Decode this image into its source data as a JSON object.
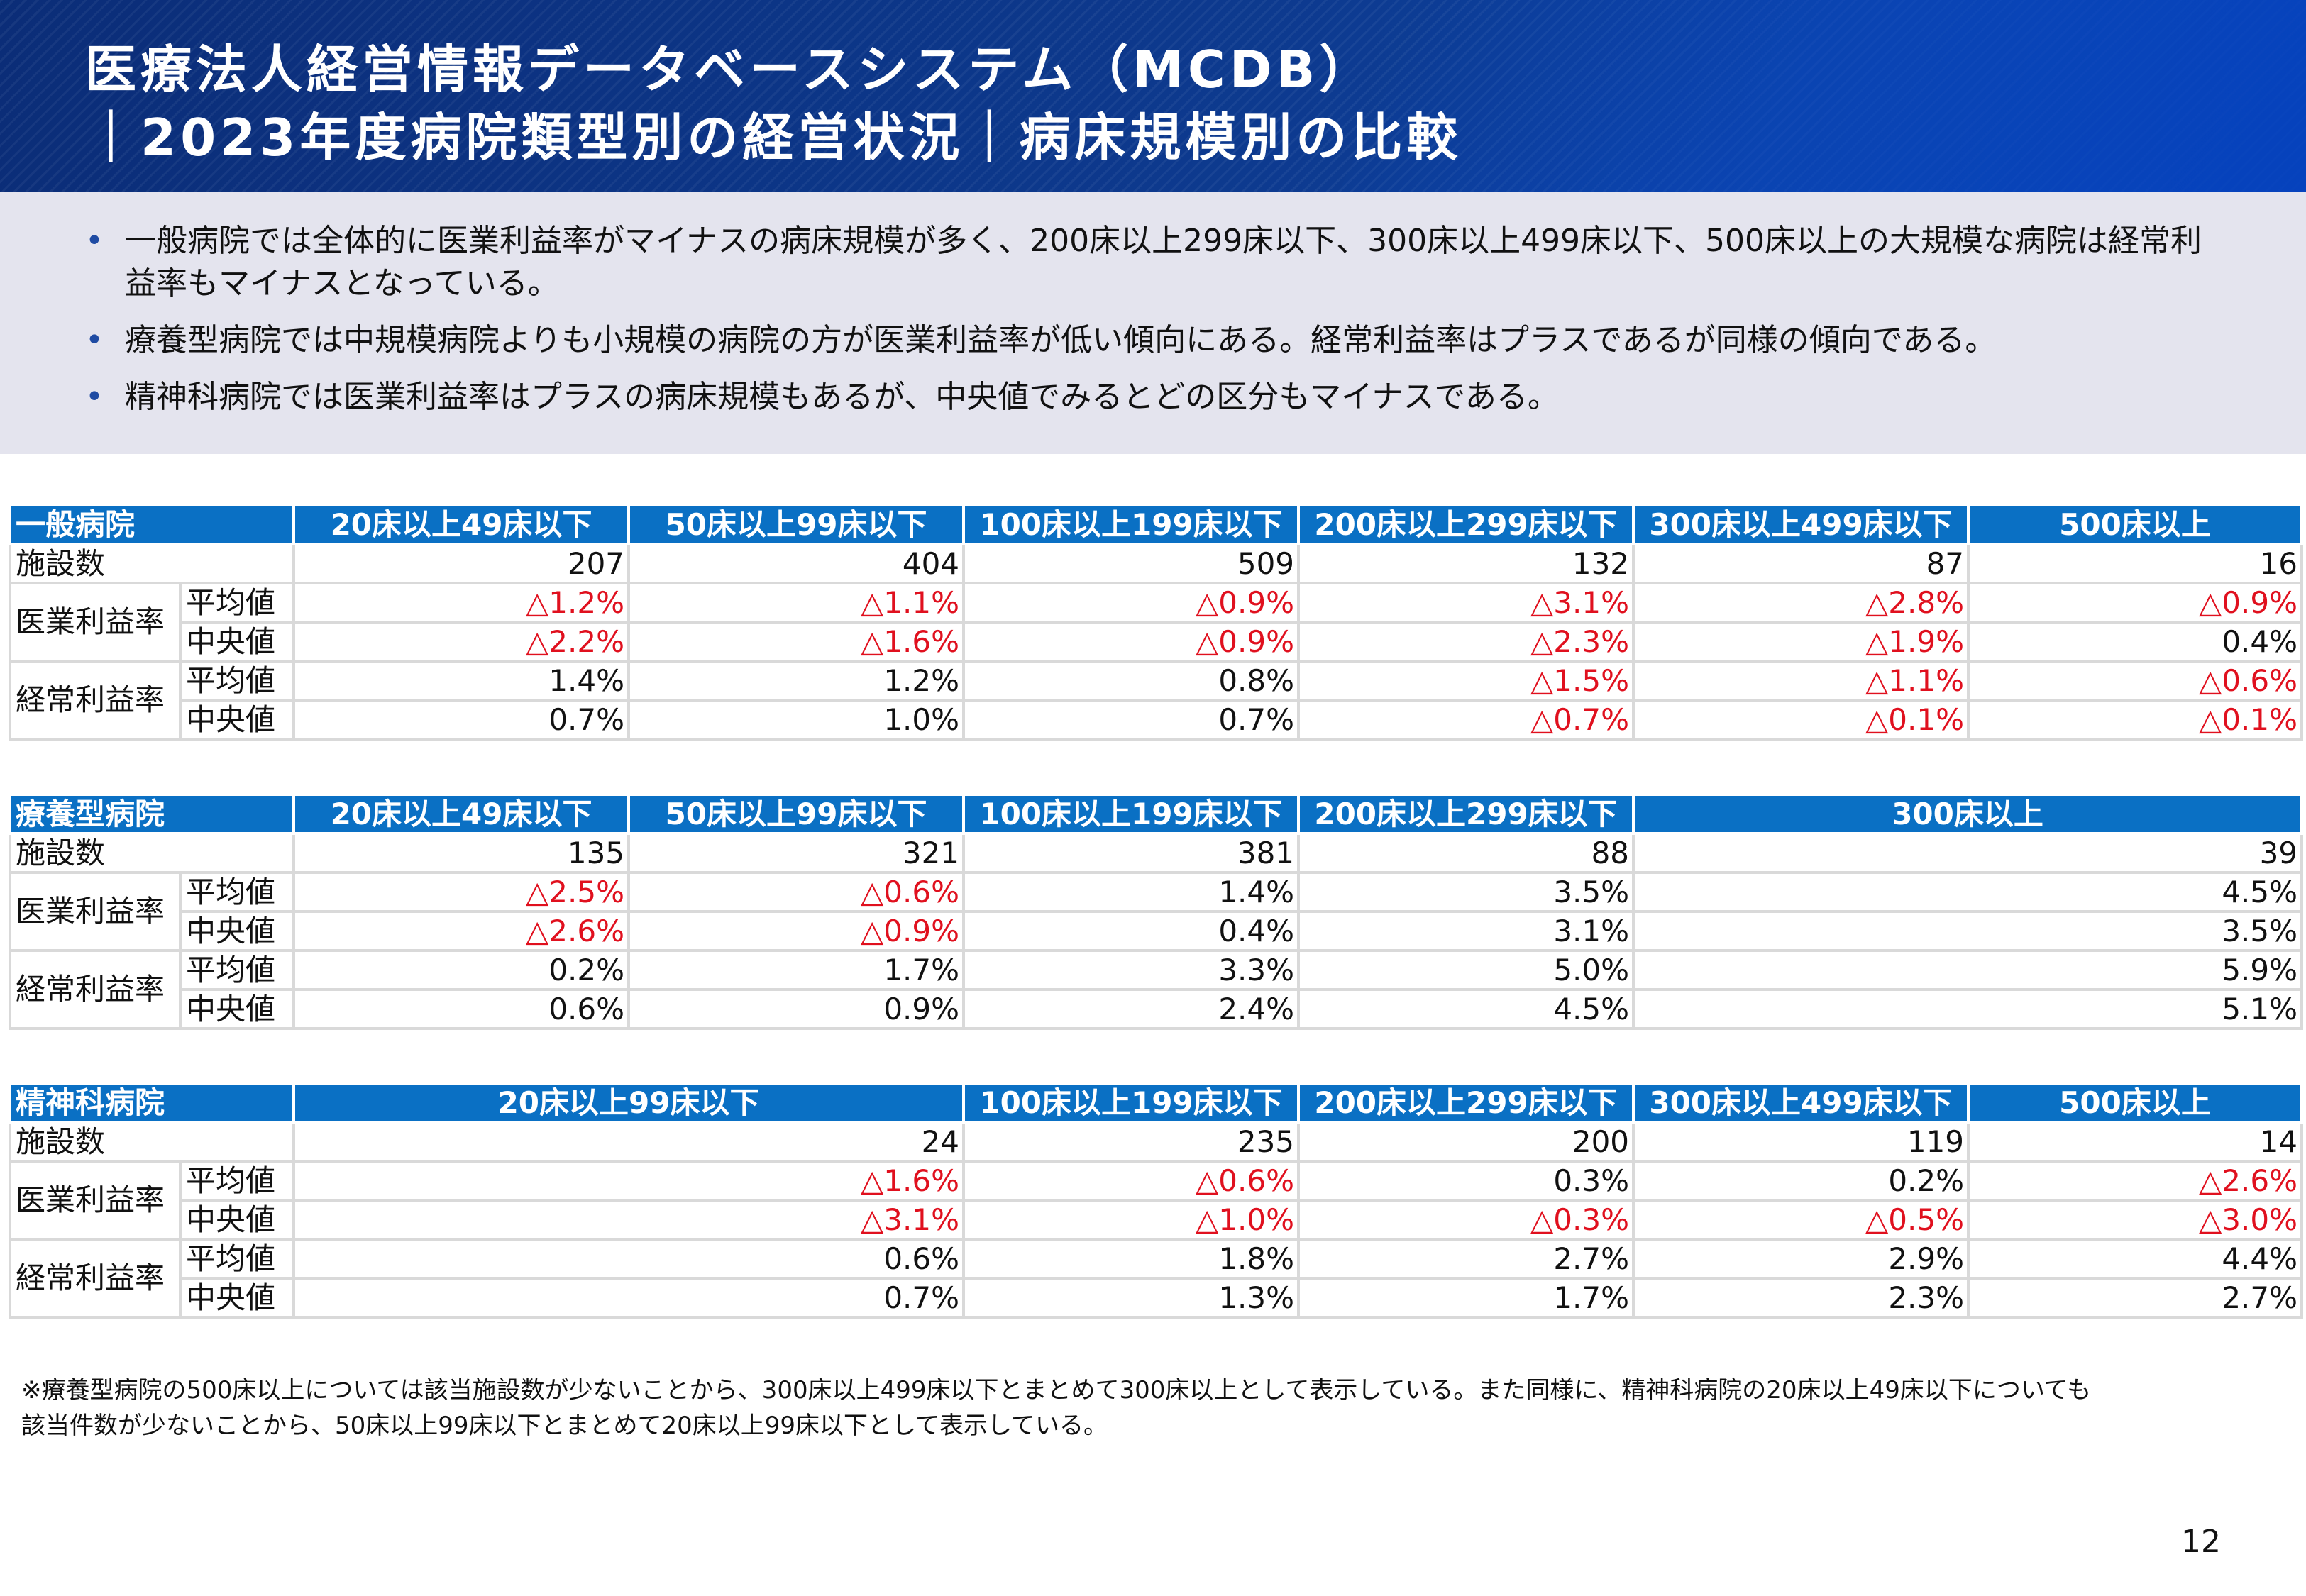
{
  "header": {
    "title_line1": "医療法人経営情報データベースシステム（MCDB）",
    "title_line2": "｜2023年度病院類型別の経営状況｜病床規模別の比較"
  },
  "summary": {
    "bullet": "•",
    "points": [
      "一般病院では全体的に医業利益率がマイナスの病床規模が多く、200床以上299床以下、300床以上499床以下、500床以上の大規模な病院は経常利益率もマイナスとなっている。",
      "療養型病院では中規模病院よりも小規模の病院の方が医業利益率が低い傾向にある。経常利益率はプラスであるが同様の傾向である。",
      "精神科病院では医業利益率はプラスの病床規模もあるが、中央値でみるとどの区分もマイナスである。"
    ]
  },
  "labels": {
    "facilities": "施設数",
    "operating_margin": "医業利益率",
    "ordinary_margin": "経常利益率",
    "mean": "平均値",
    "median": "中央値"
  },
  "tables": {
    "general": {
      "name": "一般病院",
      "columns": [
        "20床以上49床以下",
        "50床以上99床以下",
        "100床以上199床以下",
        "200床以上299床以下",
        "300床以上499床以下",
        "500床以上"
      ],
      "facilities": [
        "207",
        "404",
        "509",
        "132",
        "87",
        "16"
      ],
      "op_mean": [
        "△1.2%",
        "△1.1%",
        "△0.9%",
        "△3.1%",
        "△2.8%",
        "△0.9%"
      ],
      "op_median": [
        "△2.2%",
        "△1.6%",
        "△0.9%",
        "△2.3%",
        "△1.9%",
        "0.4%"
      ],
      "ord_mean": [
        "1.4%",
        "1.2%",
        "0.8%",
        "△1.5%",
        "△1.1%",
        "△0.6%"
      ],
      "ord_median": [
        "0.7%",
        "1.0%",
        "0.7%",
        "△0.7%",
        "△0.1%",
        "△0.1%"
      ]
    },
    "recuperative": {
      "name": "療養型病院",
      "columns": [
        "20床以上49床以下",
        "50床以上99床以下",
        "100床以上199床以下",
        "200床以上299床以下",
        "300床以上"
      ],
      "facilities": [
        "135",
        "321",
        "381",
        "88",
        "39"
      ],
      "op_mean": [
        "△2.5%",
        "△0.6%",
        "1.4%",
        "3.5%",
        "4.5%"
      ],
      "op_median": [
        "△2.6%",
        "△0.9%",
        "0.4%",
        "3.1%",
        "3.5%"
      ],
      "ord_mean": [
        "0.2%",
        "1.7%",
        "3.3%",
        "5.0%",
        "5.9%"
      ],
      "ord_median": [
        "0.6%",
        "0.9%",
        "2.4%",
        "4.5%",
        "5.1%"
      ]
    },
    "psychiatric": {
      "name": "精神科病院",
      "columns": [
        "20床以上99床以下",
        "100床以上199床以下",
        "200床以上299床以下",
        "300床以上499床以下",
        "500床以上"
      ],
      "facilities": [
        "24",
        "235",
        "200",
        "119",
        "14"
      ],
      "op_mean": [
        "△1.6%",
        "△0.6%",
        "0.3%",
        "0.2%",
        "△2.6%"
      ],
      "op_median": [
        "△3.1%",
        "△1.0%",
        "△0.3%",
        "△0.5%",
        "△3.0%"
      ],
      "ord_mean": [
        "0.6%",
        "1.8%",
        "2.7%",
        "2.9%",
        "4.4%"
      ],
      "ord_median": [
        "0.7%",
        "1.3%",
        "1.7%",
        "2.3%",
        "2.7%"
      ]
    }
  },
  "footnote": {
    "line1": "※療養型病院の500床以上については該当施設数が少ないことから、300床以上499床以下とまとめて300床以上として表示している。また同様に、精神科病院の20床以上49床以下についても",
    "line2": "該当件数が少ないことから、50床以上99床以下とまとめて20床以上99床以下として表示している。"
  },
  "page_number": "12",
  "colors": {
    "header_bg": "#0d3a8f",
    "table_header": "#0a70c4",
    "negative": "#e0101e",
    "summary_bg": "#e4e4ee"
  }
}
